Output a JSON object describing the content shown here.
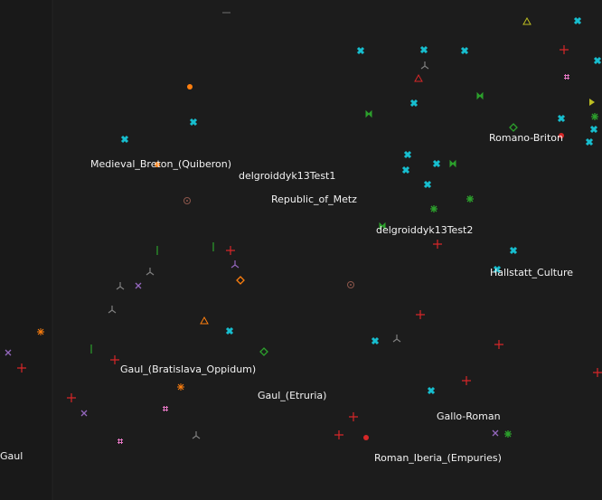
{
  "labels": [
    "Medieval_Breton_(Quiberon)",
    "delgroiddyk13Test1",
    "Republic_of_Metz",
    "Romano-Briton",
    "delgroiddyk13Test2",
    "Hallstatt_Culture",
    "Gaul_(Bratislava_Oppidum)",
    "Gaul_(Etruria)",
    "Gallo-Roman",
    "Gaul",
    "Roman_Iberia_(Empuries)"
  ]
}
